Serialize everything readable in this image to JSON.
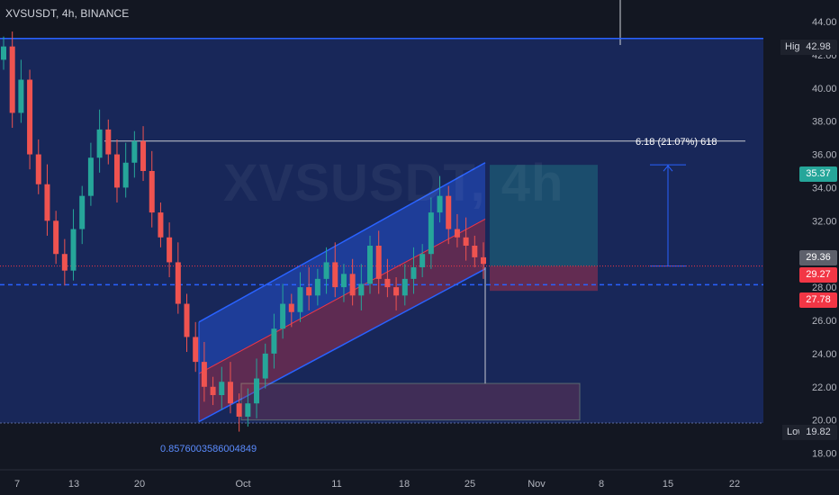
{
  "header": {
    "symbol_title": "XVSUSDT, 4h, BINANCE"
  },
  "watermark": "XVSUSDT, 4h",
  "chart_data": {
    "type": "line",
    "title": "XVSUSDT, 4h, BINANCE",
    "xlabel": "",
    "ylabel": "",
    "ylim": [
      17.0,
      45.3
    ],
    "x_tick_labels": [
      "7",
      "13",
      "20",
      "Oct",
      "11",
      "18",
      "25",
      "Nov",
      "8",
      "15",
      "22"
    ],
    "y_tick_labels": [
      "44.00",
      "42.00",
      "40.00",
      "38.00",
      "36.00",
      "34.00",
      "32.00",
      "30.00",
      "28.00",
      "26.00",
      "24.00",
      "22.00",
      "20.00",
      "18.00"
    ],
    "series": [
      {
        "values": [
          42.5,
          38.5,
          40.5,
          36.0,
          34.2,
          32.0,
          30.0,
          29.0,
          31.5,
          33.5,
          35.8,
          37.5,
          36.0,
          34.0,
          35.5,
          36.8,
          35.0,
          32.5,
          31.0,
          29.5,
          27.0,
          25.0,
          23.5,
          22.0,
          21.5,
          22.3,
          21.0,
          20.2,
          21.0,
          22.5,
          24.0,
          25.5,
          27.0,
          26.5,
          28.0,
          27.5,
          28.5,
          29.5,
          28.0,
          28.8,
          27.5,
          28.2,
          30.5,
          28.5,
          28.0,
          27.5,
          28.5,
          29.2,
          30.0,
          32.5,
          33.5,
          31.5,
          31.0,
          30.5,
          29.8,
          29.4
        ]
      }
    ],
    "annotations": {
      "high_label": "High",
      "high_value": "42.98",
      "low_label": "Low",
      "low_value": "19.82",
      "measure_label": "6.18 (21.07%) 618",
      "fib_label": "0.8576003586004849",
      "target_price": "35.37",
      "last_price": "29.36",
      "entry_price": "29.27",
      "stop_price": "27.78"
    },
    "colors": {
      "background": "#131722",
      "channel_blue": "#2962ff",
      "channel_red": "#f23645",
      "candle_up": "#26a69a",
      "candle_down": "#ef5350",
      "target_tag": "#26a69a",
      "stop_tag": "#f23645",
      "last_price_tag": "#5d606b"
    }
  }
}
